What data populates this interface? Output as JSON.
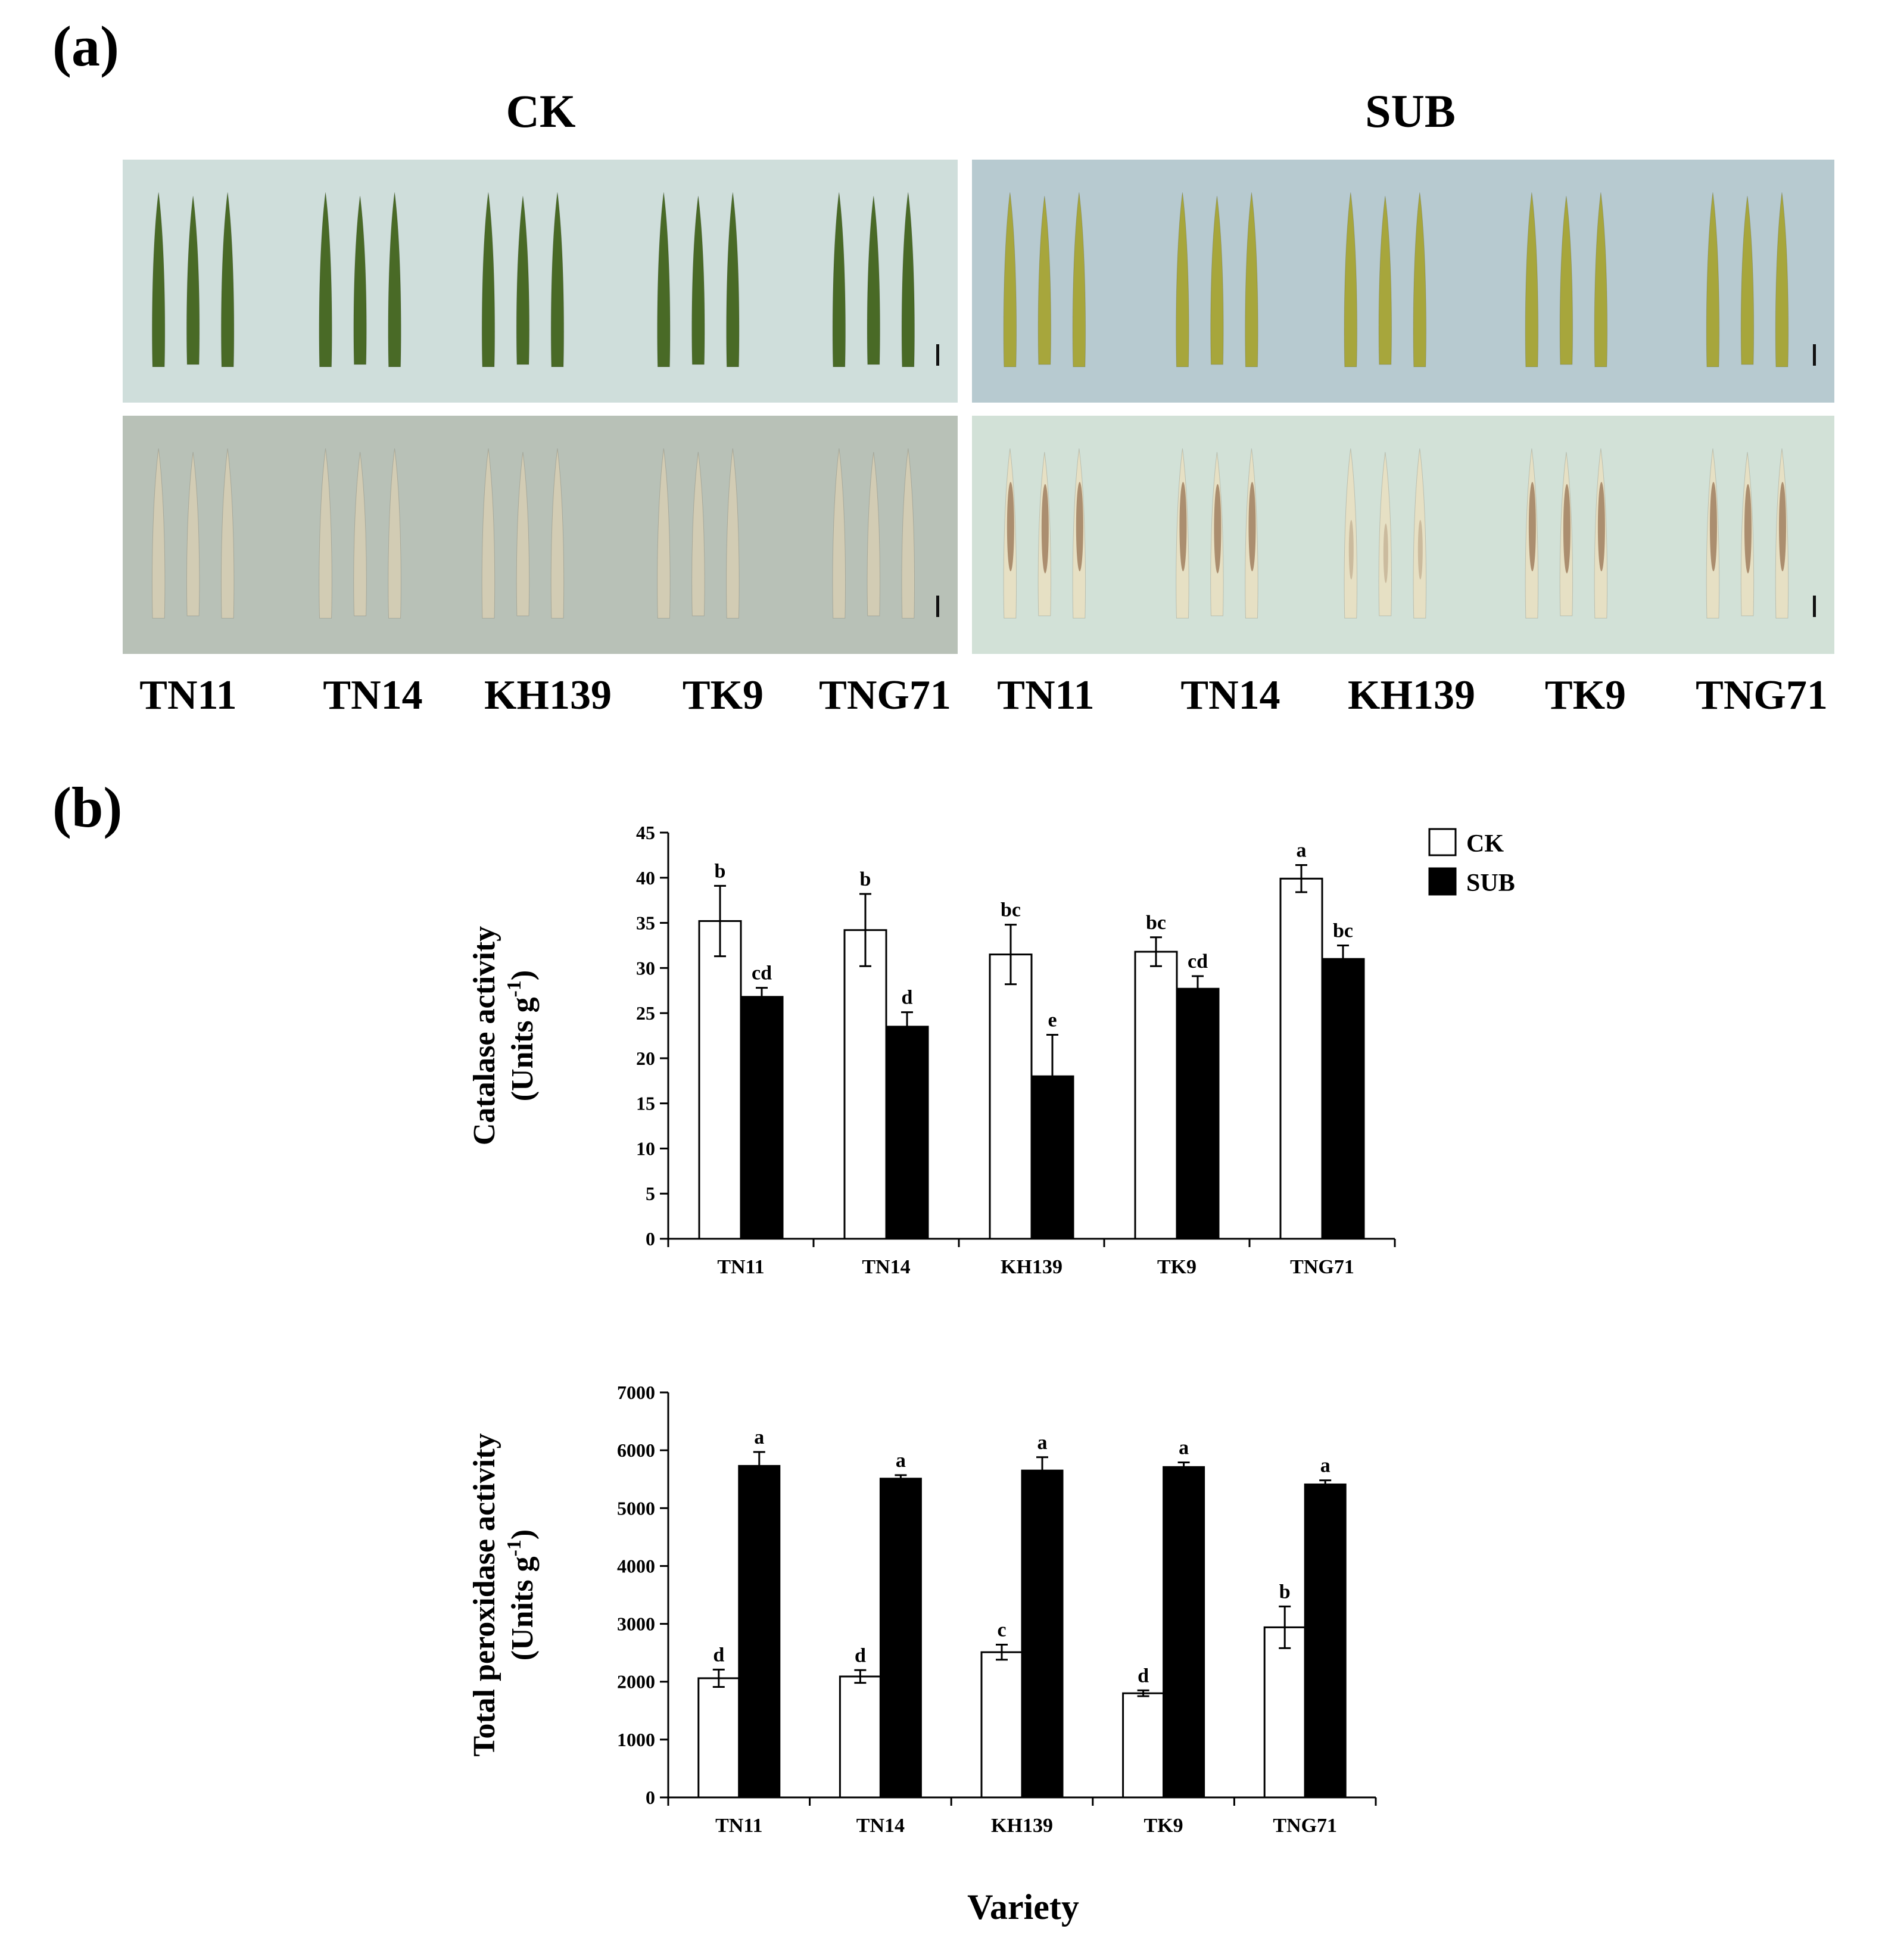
{
  "panel_a": {
    "label": "(a)",
    "headers": [
      "CK",
      "SUB"
    ],
    "varieties_ck": [
      "TN11",
      "TN14",
      "KH139",
      "TK9",
      "TNG71"
    ],
    "varieties_sub": [
      "TN11",
      "TN14",
      "KH139",
      "TK9",
      "TNG71"
    ],
    "photo_colors": {
      "ck_top_bg": "#cfdedb",
      "ck_bottom_bg": "#b8c1b7",
      "sub_top_bg": "#b7cad0",
      "sub_bottom_bg": "#d2e1d7",
      "leaf_ck_green": "#496a26",
      "leaf_sub_yellow": "#a7a63c",
      "leaf_bleached_ck": "#d2ccb4",
      "leaf_bleached_sub": "#e6e0c4",
      "stain_brown": "#7a4a2a"
    }
  },
  "panel_b": {
    "label": "(b)",
    "xlabel": "Variety",
    "legend": [
      "CK",
      "SUB"
    ]
  },
  "chart_data": [
    {
      "type": "bar",
      "ylabel_line1": "Catalase activity",
      "ylabel_line2_main": "(Units g",
      "ylabel_line2_sup": "-1",
      "ylabel_line2_end": ")",
      "categories": [
        "TN11",
        "TN14",
        "KH139",
        "TK9",
        "TNG71"
      ],
      "ylim": [
        0,
        45
      ],
      "yticks": [
        "0",
        "5",
        "10",
        "15",
        "20",
        "25",
        "30",
        "35",
        "40",
        "45"
      ],
      "legend": "top-right",
      "series": [
        {
          "name": "CK",
          "color": "#ffffff",
          "values": [
            35.2,
            34.2,
            31.5,
            31.8,
            39.9
          ],
          "errors": [
            3.9,
            4.0,
            3.3,
            1.6,
            1.5
          ],
          "letters": [
            "b",
            "b",
            "bc",
            "bc",
            "a"
          ]
        },
        {
          "name": "SUB",
          "color": "#000000",
          "values": [
            26.8,
            23.5,
            18.0,
            27.7,
            31.0
          ],
          "errors": [
            1.0,
            1.6,
            4.6,
            1.4,
            1.5
          ],
          "letters": [
            "cd",
            "d",
            "e",
            "cd",
            "bc"
          ]
        }
      ]
    },
    {
      "type": "bar",
      "ylabel_line1": "Total peroxidase activity",
      "ylabel_line2_main": "(Units g",
      "ylabel_line2_sup": "-1",
      "ylabel_line2_end": ")",
      "categories": [
        "TN11",
        "TN14",
        "KH139",
        "TK9",
        "TNG71"
      ],
      "ylim": [
        0,
        7000
      ],
      "yticks": [
        "0",
        "1000",
        "2000",
        "3000",
        "4000",
        "5000",
        "6000",
        "7000"
      ],
      "series": [
        {
          "name": "CK",
          "color": "#ffffff",
          "values": [
            2060,
            2090,
            2510,
            1800,
            2940
          ],
          "errors": [
            150,
            110,
            130,
            50,
            360
          ],
          "letters": [
            "d",
            "d",
            "c",
            "d",
            "b"
          ]
        },
        {
          "name": "SUB",
          "color": "#000000",
          "values": [
            5730,
            5510,
            5650,
            5710,
            5410
          ],
          "errors": [
            240,
            60,
            230,
            80,
            70
          ],
          "letters": [
            "a",
            "a",
            "a",
            "a",
            "a"
          ]
        }
      ]
    }
  ]
}
